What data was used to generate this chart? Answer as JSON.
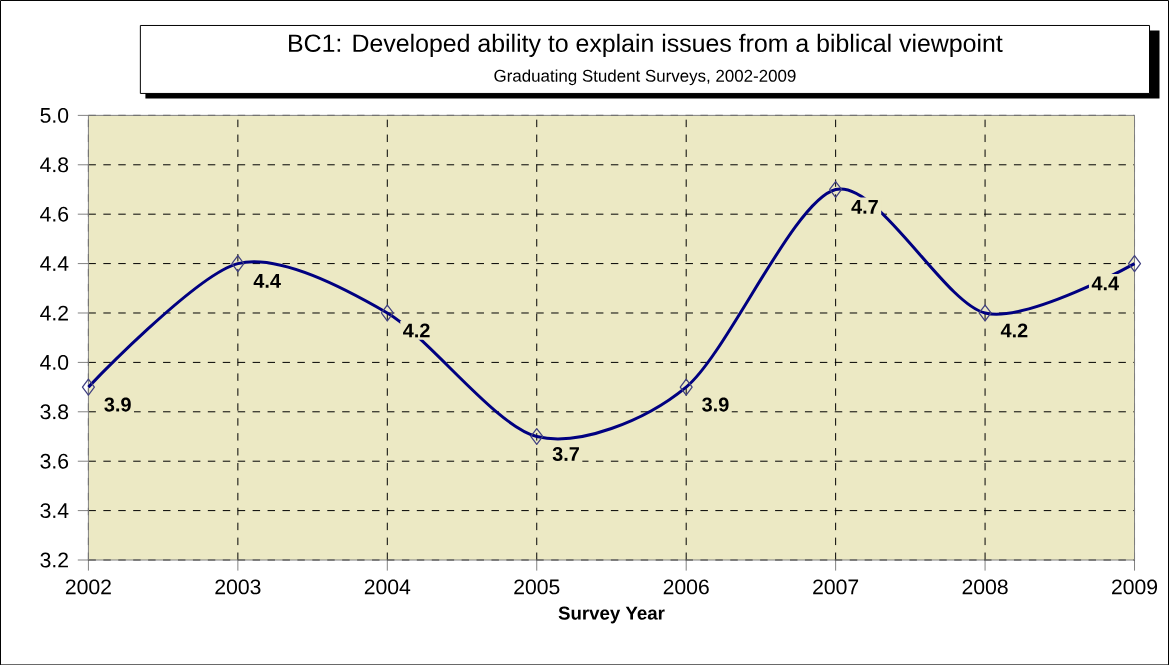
{
  "chart_data": {
    "type": "line",
    "title": "BC1: Developed ability to explain issues from a biblical viewpoint",
    "subtitle": "Graduating Student Surveys, 2002-2009",
    "xlabel": "Survey Year",
    "categories": [
      "2002",
      "2003",
      "2004",
      "2005",
      "2006",
      "2007",
      "2008",
      "2009"
    ],
    "values": [
      3.9,
      4.4,
      4.2,
      3.7,
      3.9,
      4.7,
      4.2,
      4.4
    ],
    "color": "#000080",
    "marker": "diamond",
    "line_style": "solid",
    "ylim": [
      3.2,
      5.0
    ],
    "yticks": [
      3.2,
      3.4,
      3.6,
      3.8,
      {
        "value": 4.0,
        "label": "4.0"
      },
      4.2,
      4.4,
      4.6,
      4.8,
      {
        "value": 5.0,
        "label": "5.0"
      }
    ],
    "grid": true,
    "data_labels": true
  }
}
